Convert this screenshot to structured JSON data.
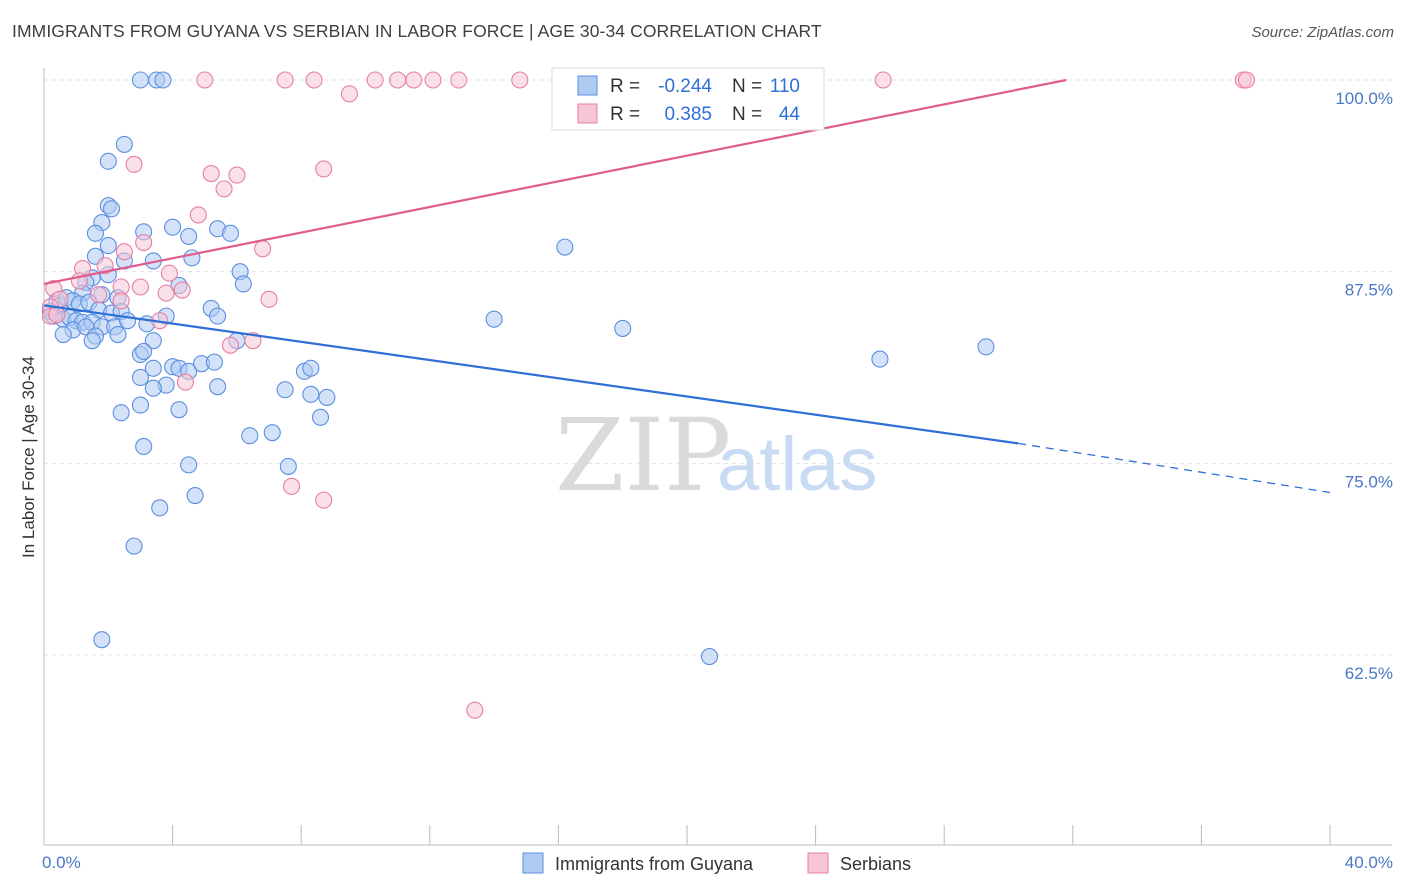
{
  "title": "IMMIGRANTS FROM GUYANA VS SERBIAN IN LABOR FORCE | AGE 30-34 CORRELATION CHART",
  "source": "Source: ZipAtlas.com",
  "watermark": {
    "zip": "ZIP",
    "atlas": "atlas"
  },
  "colors": {
    "guyana": "#5b8fe0",
    "guyana_fill": "#aecbf2",
    "serbian": "#e87fa3",
    "serbian_fill": "#f6c6d6",
    "axis_blue": "#4a78c4"
  },
  "chart_data": {
    "type": "scatter",
    "title": "IMMIGRANTS FROM GUYANA VS SERBIAN IN LABOR FORCE | AGE 30-34 CORRELATION CHART",
    "ylabel": "In Labor Force | Age 30-34",
    "xlim": [
      0,
      40
    ],
    "ylim": [
      52,
      100.5
    ],
    "x_tick_labels": {
      "left": "0.0%",
      "right": "40.0%"
    },
    "y_ticks": [
      {
        "value": 100,
        "label": "100.0%"
      },
      {
        "value": 87.5,
        "label": "87.5%"
      },
      {
        "value": 75,
        "label": "75.0%"
      },
      {
        "value": 62.5,
        "label": "62.5%"
      }
    ],
    "legend": [
      {
        "r_label": "R =",
        "r": "-0.244",
        "n_label": "N =",
        "n": "110"
      },
      {
        "r_label": "R =",
        "r": "0.385",
        "n_label": "N =",
        "n": "44"
      }
    ],
    "series": [
      {
        "name": "Immigrants from Guyana",
        "trend": {
          "x0": 0,
          "y0": 85.3,
          "x1": 30.3,
          "y1": 76.3,
          "dash_to_x": 40,
          "dash_to_y": 73.1
        },
        "points": [
          [
            3.0,
            100
          ],
          [
            3.5,
            100
          ],
          [
            3.7,
            100
          ],
          [
            2.5,
            95.8
          ],
          [
            2.0,
            94.7
          ],
          [
            2.0,
            91.8
          ],
          [
            2.1,
            91.6
          ],
          [
            1.8,
            90.7
          ],
          [
            3.1,
            90.1
          ],
          [
            4.0,
            90.4
          ],
          [
            4.5,
            89.8
          ],
          [
            5.4,
            90.3
          ],
          [
            5.8,
            90.0
          ],
          [
            1.6,
            90.0
          ],
          [
            2.0,
            89.2
          ],
          [
            1.6,
            88.5
          ],
          [
            2.5,
            88.2
          ],
          [
            3.4,
            88.2
          ],
          [
            4.6,
            88.4
          ],
          [
            6.1,
            87.5
          ],
          [
            6.2,
            86.7
          ],
          [
            1.5,
            87.1
          ],
          [
            2.0,
            87.3
          ],
          [
            1.3,
            86.8
          ],
          [
            1.2,
            86.1
          ],
          [
            1.8,
            86.0
          ],
          [
            2.3,
            85.8
          ],
          [
            4.2,
            86.6
          ],
          [
            5.2,
            85.1
          ],
          [
            5.4,
            84.6
          ],
          [
            0.4,
            85.6
          ],
          [
            0.5,
            85.3
          ],
          [
            0.7,
            85.8
          ],
          [
            0.9,
            85.6
          ],
          [
            1.1,
            85.4
          ],
          [
            1.4,
            85.5
          ],
          [
            1.7,
            85.0
          ],
          [
            2.1,
            84.8
          ],
          [
            2.4,
            84.9
          ],
          [
            0.2,
            84.9
          ],
          [
            0.3,
            84.6
          ],
          [
            0.6,
            84.4
          ],
          [
            0.8,
            84.5
          ],
          [
            1.0,
            84.3
          ],
          [
            1.2,
            84.2
          ],
          [
            1.5,
            84.2
          ],
          [
            1.8,
            83.9
          ],
          [
            2.2,
            83.9
          ],
          [
            2.6,
            84.3
          ],
          [
            3.2,
            84.1
          ],
          [
            3.8,
            84.6
          ],
          [
            0.9,
            83.7
          ],
          [
            1.3,
            83.9
          ],
          [
            1.6,
            83.3
          ],
          [
            2.3,
            83.4
          ],
          [
            3.4,
            83.0
          ],
          [
            0.6,
            83.4
          ],
          [
            1.5,
            83.0
          ],
          [
            3.0,
            82.1
          ],
          [
            3.1,
            82.3
          ],
          [
            6.0,
            83.0
          ],
          [
            4.0,
            81.3
          ],
          [
            4.2,
            81.2
          ],
          [
            4.5,
            81.0
          ],
          [
            4.9,
            81.5
          ],
          [
            5.3,
            81.6
          ],
          [
            3.4,
            81.2
          ],
          [
            3.0,
            80.6
          ],
          [
            3.8,
            80.1
          ],
          [
            3.4,
            79.9
          ],
          [
            5.4,
            80.0
          ],
          [
            7.5,
            79.8
          ],
          [
            8.1,
            81.0
          ],
          [
            8.3,
            81.2
          ],
          [
            8.3,
            79.5
          ],
          [
            8.8,
            79.3
          ],
          [
            3.0,
            78.8
          ],
          [
            4.2,
            78.5
          ],
          [
            2.4,
            78.3
          ],
          [
            8.6,
            78.0
          ],
          [
            6.4,
            76.8
          ],
          [
            7.1,
            77.0
          ],
          [
            3.1,
            76.1
          ],
          [
            4.5,
            74.9
          ],
          [
            7.6,
            74.8
          ],
          [
            4.7,
            72.9
          ],
          [
            3.6,
            72.1
          ],
          [
            2.8,
            69.6
          ],
          [
            1.8,
            63.5
          ],
          [
            14.0,
            84.4
          ],
          [
            16.2,
            89.1
          ],
          [
            18.0,
            83.8
          ],
          [
            26.0,
            81.8
          ],
          [
            29.3,
            82.6
          ],
          [
            20.7,
            62.4
          ]
        ]
      },
      {
        "name": "Serbians",
        "trend": {
          "x0": 0,
          "y0": 86.7,
          "x1": 31.8,
          "y1": 100
        },
        "points": [
          [
            5.0,
            100
          ],
          [
            7.5,
            100
          ],
          [
            8.4,
            100
          ],
          [
            10.3,
            100
          ],
          [
            11.0,
            100
          ],
          [
            11.5,
            100
          ],
          [
            12.1,
            100
          ],
          [
            12.9,
            100
          ],
          [
            14.8,
            100
          ],
          [
            26.1,
            100
          ],
          [
            37.3,
            100
          ],
          [
            37.4,
            100
          ],
          [
            9.5,
            99.1
          ],
          [
            2.8,
            94.5
          ],
          [
            8.7,
            94.2
          ],
          [
            5.2,
            93.9
          ],
          [
            6.0,
            93.8
          ],
          [
            5.6,
            92.9
          ],
          [
            4.8,
            91.2
          ],
          [
            3.1,
            89.4
          ],
          [
            6.8,
            89.0
          ],
          [
            2.5,
            88.8
          ],
          [
            1.9,
            87.9
          ],
          [
            1.2,
            87.7
          ],
          [
            3.9,
            87.4
          ],
          [
            1.1,
            86.9
          ],
          [
            2.4,
            86.5
          ],
          [
            3.0,
            86.5
          ],
          [
            4.3,
            86.3
          ],
          [
            3.8,
            86.1
          ],
          [
            0.3,
            86.4
          ],
          [
            0.5,
            85.7
          ],
          [
            0.2,
            85.2
          ],
          [
            1.7,
            86.0
          ],
          [
            2.4,
            85.6
          ],
          [
            7.0,
            85.7
          ],
          [
            0.2,
            84.6
          ],
          [
            0.4,
            84.7
          ],
          [
            3.6,
            84.3
          ],
          [
            5.8,
            82.7
          ],
          [
            6.5,
            83.0
          ],
          [
            4.4,
            80.3
          ],
          [
            7.7,
            73.5
          ],
          [
            8.7,
            72.6
          ],
          [
            13.4,
            58.9
          ]
        ]
      }
    ]
  }
}
